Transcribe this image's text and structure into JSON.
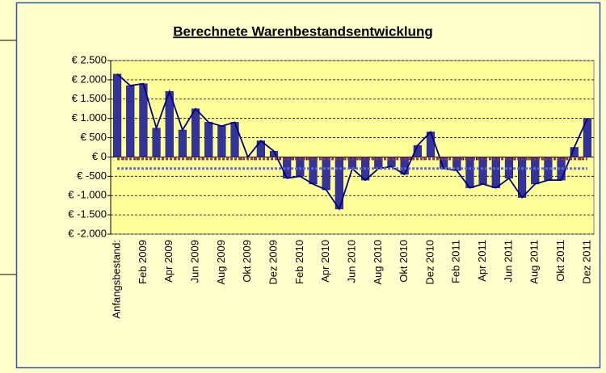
{
  "chart_data": {
    "type": "bar",
    "title": "Berechnete Warenbestandsentwicklung",
    "categories": [
      "Anfangsbestand:",
      null,
      "Feb 2009",
      null,
      "Apr 2009",
      null,
      "Jun 2009",
      null,
      "Aug 2009",
      null,
      "Okt 2009",
      null,
      "Dez 2009",
      null,
      "Feb 2010",
      null,
      "Apr 2010",
      null,
      "Jun 2010",
      null,
      "Aug 2010",
      null,
      "Okt 2010",
      null,
      "Dez 2010",
      null,
      "Feb 2011",
      null,
      "Apr 2011",
      null,
      "Jun 2011",
      null,
      "Aug 2011",
      null,
      "Okt 2011",
      null,
      "Dez 2011"
    ],
    "series": [
      {
        "kind": "bar",
        "color": "#333399",
        "values": [
          2150,
          1850,
          1900,
          750,
          1700,
          700,
          1250,
          900,
          800,
          900,
          0,
          420,
          150,
          -550,
          -500,
          -700,
          -850,
          -1350,
          -300,
          -600,
          -300,
          -250,
          -450,
          300,
          650,
          -300,
          -350,
          -800,
          -700,
          -800,
          -550,
          -1050,
          -700,
          -600,
          -600,
          250,
          1000
        ]
      },
      {
        "kind": "line",
        "color": "#000080",
        "values": [
          2150,
          1850,
          1900,
          750,
          1700,
          700,
          1250,
          900,
          800,
          900,
          0,
          420,
          150,
          -550,
          -500,
          -700,
          -850,
          -1350,
          -300,
          -600,
          -300,
          -250,
          -450,
          300,
          650,
          -300,
          -350,
          -800,
          -700,
          -800,
          -550,
          -1050,
          -700,
          -600,
          -600,
          250,
          1000
        ]
      },
      {
        "kind": "dashed",
        "color": "#993333",
        "values": [
          -50,
          -50,
          -50,
          -50,
          -50,
          -50,
          -50,
          -50,
          -50,
          -50,
          -50,
          -50,
          -50,
          -50,
          -50,
          -50,
          -50,
          -50,
          -50,
          -50,
          -50,
          -50,
          -50,
          -50,
          -50,
          -50,
          -50,
          -50,
          -50,
          -50,
          -50,
          -50,
          -50,
          -50,
          -50,
          -50,
          -50
        ]
      },
      {
        "kind": "dashed",
        "color": "#6666cc",
        "values": [
          -300,
          -300,
          -300,
          -300,
          -300,
          -300,
          -300,
          -300,
          -300,
          -300,
          -300,
          -300,
          -300,
          -300,
          -300,
          -300,
          -300,
          -300,
          -300,
          -300,
          -300,
          -300,
          -300,
          -300,
          -300,
          -300,
          -300,
          -300,
          -300,
          -300,
          -300,
          -300,
          -300,
          -300,
          -300,
          -300,
          -300
        ]
      }
    ],
    "ylim": [
      -2000,
      2500
    ],
    "yticks": [
      {
        "value": -2000,
        "label": "€ -2.000"
      },
      {
        "value": -1500,
        "label": "€ -1.500"
      },
      {
        "value": -1000,
        "label": "€ -1.000"
      },
      {
        "value": -500,
        "label": "€ -500"
      },
      {
        "value": 0,
        "label": "€ 0"
      },
      {
        "value": 500,
        "label": "€ 500"
      },
      {
        "value": 1000,
        "label": "€ 1.000"
      },
      {
        "value": 1500,
        "label": "€ 1.500"
      },
      {
        "value": 2000,
        "label": "€ 2.000"
      },
      {
        "value": 2500,
        "label": "€ 2.500"
      }
    ],
    "grid": true
  }
}
